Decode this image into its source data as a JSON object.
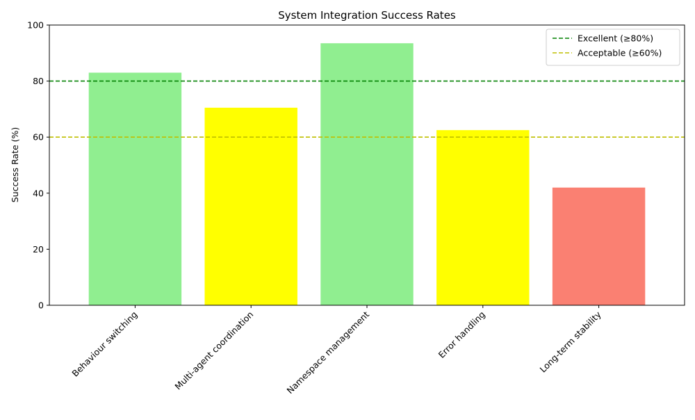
{
  "chart_data": {
    "type": "bar",
    "title": "System Integration Success Rates",
    "xlabel": "",
    "ylabel": "Success Rate (%)",
    "categories": [
      "Behaviour switching",
      "Multi-agent coordination",
      "Namespace management",
      "Error handling",
      "Long-term stability"
    ],
    "values": [
      83.0,
      70.5,
      93.5,
      62.5,
      42.0
    ],
    "bar_colors": [
      "#90ee90",
      "#ffff00",
      "#90ee90",
      "#ffff00",
      "#fa8072"
    ],
    "ylim": [
      0,
      100
    ],
    "yticks": [
      0,
      20,
      40,
      60,
      80,
      100
    ],
    "grid": false,
    "legend_position": "top-right",
    "reference_lines": [
      {
        "label": "Excellent (≥80%)",
        "value": 80,
        "color": "#008000",
        "style": "dashed"
      },
      {
        "label": "Acceptable (≥60%)",
        "value": 60,
        "color": "#bfbf00",
        "style": "dashed"
      }
    ]
  }
}
